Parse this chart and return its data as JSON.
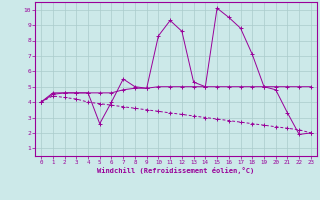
{
  "xlabel": "Windchill (Refroidissement éolien,°C)",
  "background_color": "#cce9e9",
  "grid_color": "#aacccc",
  "line_color": "#990099",
  "x": [
    0,
    1,
    2,
    3,
    4,
    5,
    6,
    7,
    8,
    9,
    10,
    11,
    12,
    13,
    14,
    15,
    16,
    17,
    18,
    19,
    20,
    21,
    22,
    23
  ],
  "line1": [
    4.0,
    4.6,
    4.6,
    4.6,
    4.6,
    2.6,
    4.0,
    5.5,
    5.0,
    4.9,
    8.3,
    9.3,
    8.6,
    5.3,
    5.0,
    10.1,
    9.5,
    8.8,
    7.1,
    5.0,
    4.8,
    3.3,
    1.9,
    2.0
  ],
  "line2": [
    4.0,
    4.5,
    4.6,
    4.6,
    4.6,
    4.6,
    4.6,
    4.8,
    4.9,
    4.9,
    5.0,
    5.0,
    5.0,
    5.0,
    5.0,
    5.0,
    5.0,
    5.0,
    5.0,
    5.0,
    5.0,
    5.0,
    5.0,
    5.0
  ],
  "line3": [
    4.0,
    4.4,
    4.3,
    4.2,
    4.0,
    3.9,
    3.8,
    3.7,
    3.6,
    3.5,
    3.4,
    3.3,
    3.2,
    3.1,
    3.0,
    2.9,
    2.8,
    2.7,
    2.6,
    2.5,
    2.4,
    2.3,
    2.2,
    2.0
  ],
  "ylim_min": 1,
  "ylim_max": 10,
  "xlim_min": 0,
  "xlim_max": 23,
  "yticks": [
    1,
    2,
    3,
    4,
    5,
    6,
    7,
    8,
    9,
    10
  ],
  "xticks": [
    0,
    1,
    2,
    3,
    4,
    5,
    6,
    7,
    8,
    9,
    10,
    11,
    12,
    13,
    14,
    15,
    16,
    17,
    18,
    19,
    20,
    21,
    22,
    23
  ]
}
